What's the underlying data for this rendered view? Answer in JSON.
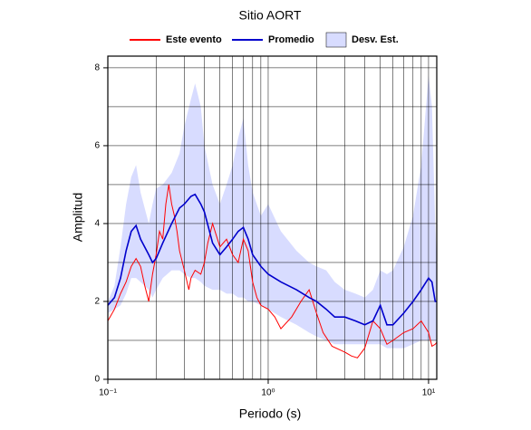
{
  "chart_data": {
    "type": "line",
    "title": "Sitio AORT",
    "xlabel": "Periodo (s)",
    "ylabel": "Amplitud",
    "xscale": "log",
    "xlim": [
      0.1,
      11.25
    ],
    "ylim": [
      0,
      8.3
    ],
    "xticks": [
      {
        "value": 0.1,
        "label": "10⁻¹"
      },
      {
        "value": 1,
        "label": "10⁰"
      },
      {
        "value": 10,
        "label": "10¹"
      }
    ],
    "xgrid_minor": [
      0.2,
      0.3,
      0.4,
      0.5,
      0.6,
      0.7,
      0.8,
      0.9,
      2,
      3,
      4,
      5,
      6,
      7,
      8,
      9
    ],
    "yticks": [
      0,
      2,
      4,
      6,
      8
    ],
    "ygrid_minor": [
      1,
      3,
      5,
      7
    ],
    "grid": true,
    "legend": "top",
    "series": [
      {
        "name": "Este evento",
        "color": "#ff0000",
        "x": [
          0.1,
          0.11,
          0.12,
          0.13,
          0.14,
          0.15,
          0.16,
          0.17,
          0.18,
          0.19,
          0.2,
          0.21,
          0.22,
          0.23,
          0.24,
          0.25,
          0.26,
          0.27,
          0.28,
          0.3,
          0.32,
          0.33,
          0.35,
          0.38,
          0.4,
          0.42,
          0.45,
          0.5,
          0.55,
          0.6,
          0.65,
          0.7,
          0.75,
          0.8,
          0.85,
          0.9,
          1.0,
          1.1,
          1.2,
          1.4,
          1.6,
          1.8,
          2.0,
          2.2,
          2.5,
          3.0,
          3.3,
          3.6,
          4.0,
          4.5,
          5.0,
          5.5,
          6.0,
          7,
          8,
          9,
          10,
          10.5,
          11,
          11.25
        ],
        "values": [
          1.5,
          1.8,
          2.2,
          2.5,
          2.9,
          3.1,
          2.9,
          2.4,
          2.0,
          2.7,
          3.2,
          3.8,
          3.6,
          4.5,
          5.0,
          4.5,
          4.2,
          3.8,
          3.3,
          2.8,
          2.3,
          2.6,
          2.8,
          2.7,
          3.0,
          3.5,
          4.0,
          3.4,
          3.6,
          3.2,
          3.0,
          3.6,
          3.3,
          2.5,
          2.1,
          1.9,
          1.8,
          1.6,
          1.3,
          1.6,
          2.0,
          2.3,
          1.7,
          1.2,
          0.85,
          0.7,
          0.6,
          0.55,
          0.8,
          1.5,
          1.3,
          0.9,
          1.0,
          1.2,
          1.3,
          1.5,
          1.2,
          0.85,
          0.9,
          0.95
        ]
      },
      {
        "name": "Promedio",
        "color": "#0000cc",
        "x": [
          0.1,
          0.11,
          0.12,
          0.13,
          0.14,
          0.15,
          0.16,
          0.18,
          0.19,
          0.2,
          0.22,
          0.25,
          0.28,
          0.3,
          0.33,
          0.35,
          0.38,
          0.4,
          0.45,
          0.5,
          0.55,
          0.6,
          0.65,
          0.7,
          0.75,
          0.8,
          0.9,
          1.0,
          1.2,
          1.5,
          1.8,
          2.0,
          2.3,
          2.6,
          3.0,
          3.5,
          4.0,
          4.5,
          5.0,
          5.5,
          6.0,
          7,
          8,
          9,
          10,
          10.5,
          11,
          11.25
        ],
        "values": [
          1.9,
          2.1,
          2.6,
          3.3,
          3.8,
          3.95,
          3.6,
          3.2,
          3.0,
          3.1,
          3.5,
          4.0,
          4.4,
          4.5,
          4.7,
          4.75,
          4.5,
          4.3,
          3.5,
          3.2,
          3.4,
          3.6,
          3.8,
          3.9,
          3.6,
          3.2,
          2.9,
          2.7,
          2.5,
          2.3,
          2.1,
          2.0,
          1.8,
          1.6,
          1.6,
          1.5,
          1.4,
          1.5,
          1.9,
          1.4,
          1.4,
          1.7,
          2.0,
          2.3,
          2.6,
          2.5,
          2.0,
          2.0
        ]
      },
      {
        "name": "Desv. Est.",
        "color": "#d8dcff",
        "x": [
          0.1,
          0.11,
          0.12,
          0.13,
          0.14,
          0.15,
          0.16,
          0.18,
          0.19,
          0.2,
          0.22,
          0.25,
          0.28,
          0.3,
          0.33,
          0.35,
          0.38,
          0.4,
          0.45,
          0.5,
          0.55,
          0.6,
          0.65,
          0.7,
          0.75,
          0.8,
          0.9,
          1.0,
          1.2,
          1.5,
          1.8,
          2.0,
          2.3,
          2.6,
          3.0,
          3.5,
          4.0,
          4.5,
          5.0,
          5.5,
          6.0,
          7,
          8,
          9,
          10,
          10.5,
          11,
          11.25
        ],
        "upper": [
          2.0,
          2.4,
          3.4,
          4.5,
          5.2,
          5.5,
          4.8,
          4.0,
          4.5,
          4.9,
          5.0,
          5.3,
          5.8,
          6.5,
          7.2,
          7.6,
          7.0,
          6.0,
          5.0,
          4.5,
          5.0,
          5.5,
          6.2,
          6.7,
          5.5,
          4.8,
          4.2,
          4.5,
          3.8,
          3.3,
          3.0,
          2.9,
          2.8,
          2.5,
          2.3,
          2.2,
          2.1,
          2.3,
          2.8,
          2.7,
          2.8,
          3.4,
          4.2,
          5.5,
          7.8,
          7.0,
          4.0,
          3.0
        ],
        "lower": [
          1.7,
          1.8,
          1.9,
          2.2,
          2.6,
          2.6,
          2.5,
          2.3,
          2.1,
          2.3,
          2.6,
          2.8,
          2.8,
          2.7,
          2.6,
          2.6,
          2.5,
          2.4,
          2.3,
          2.3,
          2.2,
          2.2,
          2.1,
          2.1,
          2.0,
          2.0,
          1.9,
          1.8,
          1.6,
          1.4,
          1.2,
          1.1,
          1.0,
          0.9,
          0.9,
          0.9,
          0.9,
          0.9,
          0.9,
          0.8,
          0.8,
          0.8,
          0.9,
          1.0,
          1.0,
          1.0,
          1.0,
          1.0
        ]
      }
    ]
  }
}
